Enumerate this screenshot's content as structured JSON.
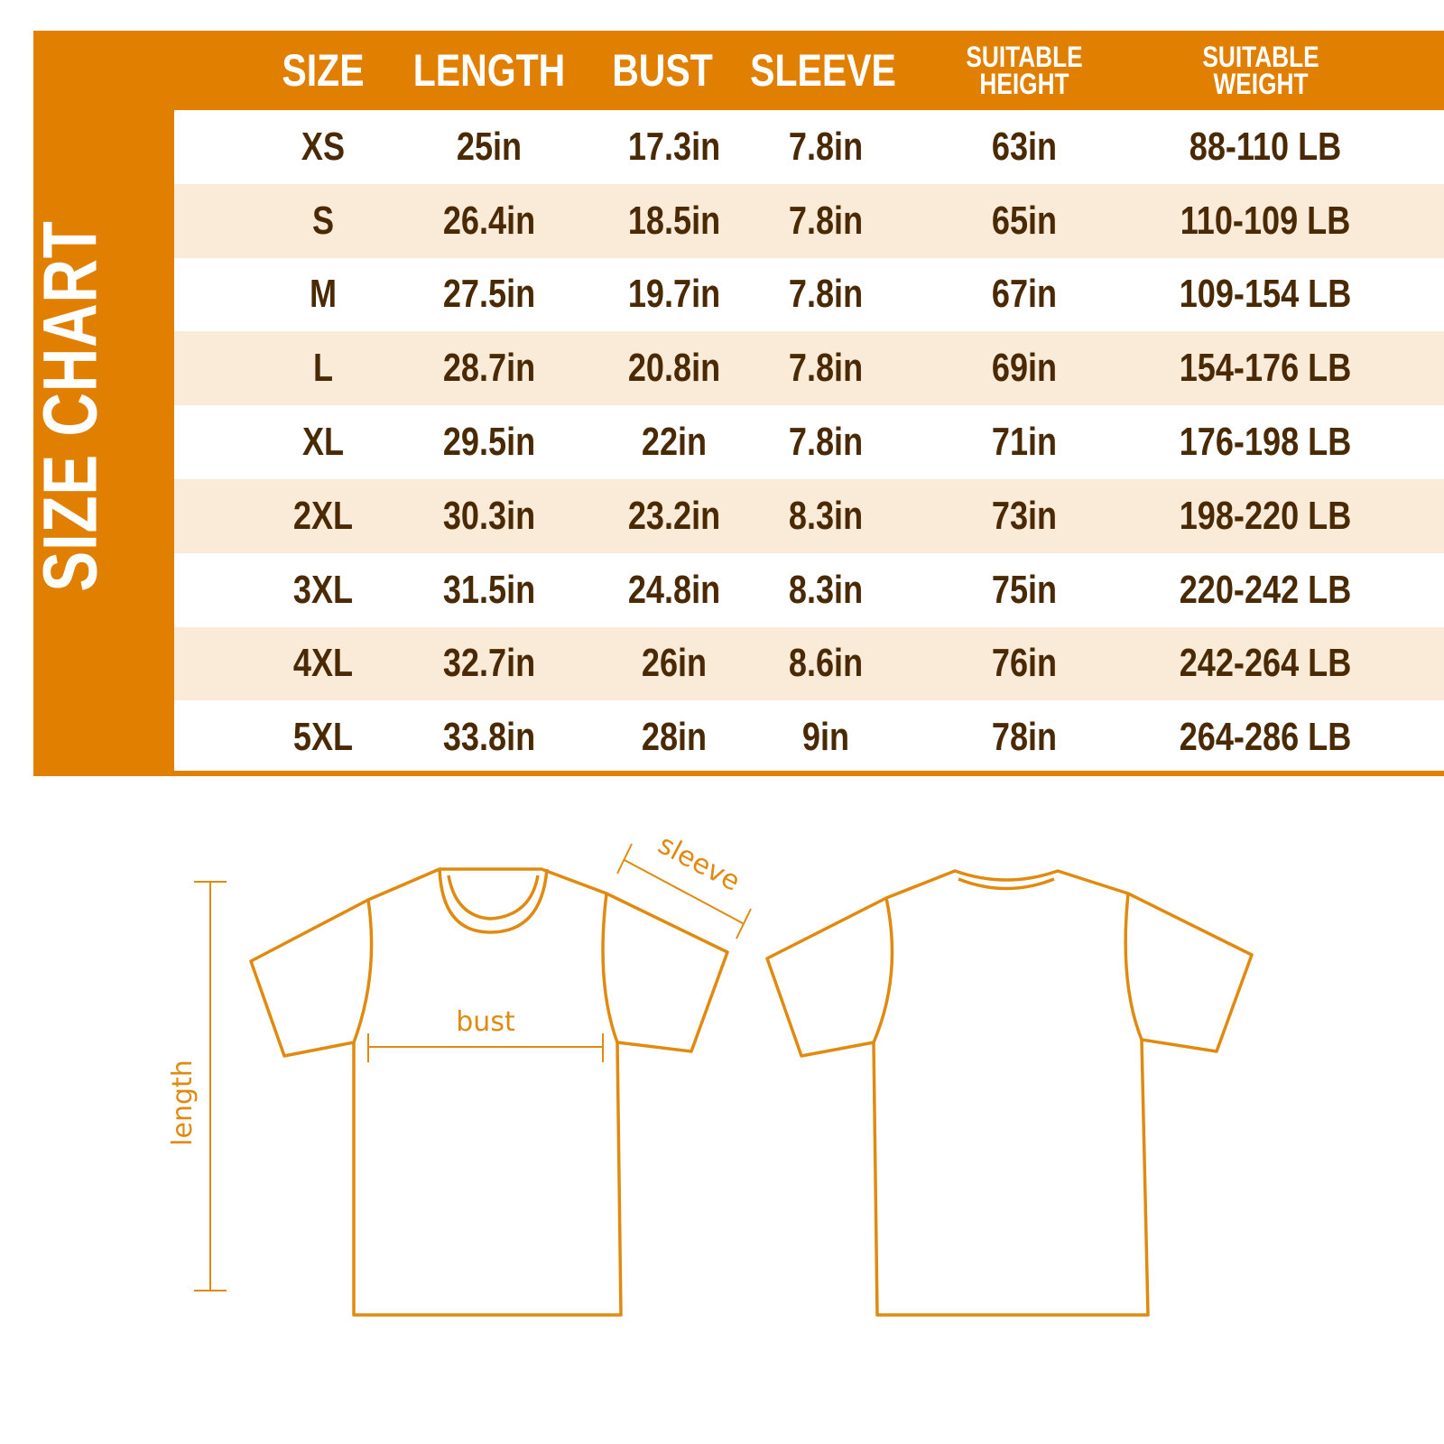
{
  "title": "SIZE CHART",
  "headers": [
    "SIZE",
    "LENGTH",
    "BUST",
    "SLEEVE",
    "SUITABLE\nHEIGHT",
    "SUITABLE\nWEIGHT"
  ],
  "rows": [
    [
      "XS",
      "25in",
      "17.3in",
      "7.8in",
      "63in",
      "88-110 LB"
    ],
    [
      "S",
      "26.4in",
      "18.5in",
      "7.8in",
      "65in",
      "110-109 LB"
    ],
    [
      "M",
      "27.5in",
      "19.7in",
      "7.8in",
      "67in",
      "109-154 LB"
    ],
    [
      "L",
      "28.7in",
      "20.8in",
      "7.8in",
      "69in",
      "154-176 LB"
    ],
    [
      "XL",
      "29.5in",
      "22in",
      "7.8in",
      "71in",
      "176-198 LB"
    ],
    [
      "2XL",
      "30.3in",
      "23.2in",
      "8.3in",
      "73in",
      "198-220 LB"
    ],
    [
      "3XL",
      "31.5in",
      "24.8in",
      "8.3in",
      "75in",
      "220-242 LB"
    ],
    [
      "4XL",
      "32.7in",
      "26in",
      "8.6in",
      "76in",
      "242-264 LB"
    ],
    [
      "5XL",
      "33.8in",
      "28in",
      "9in",
      "78in",
      "264-286 LB"
    ]
  ],
  "diagram": {
    "sleeve_label": "sleeve",
    "bust_label": "bust",
    "length_label": "length"
  },
  "colors": {
    "accent": "#E07F00",
    "row_alt": "#FAEAD8",
    "text": "#4A2A05",
    "outline": "#E08A10"
  }
}
